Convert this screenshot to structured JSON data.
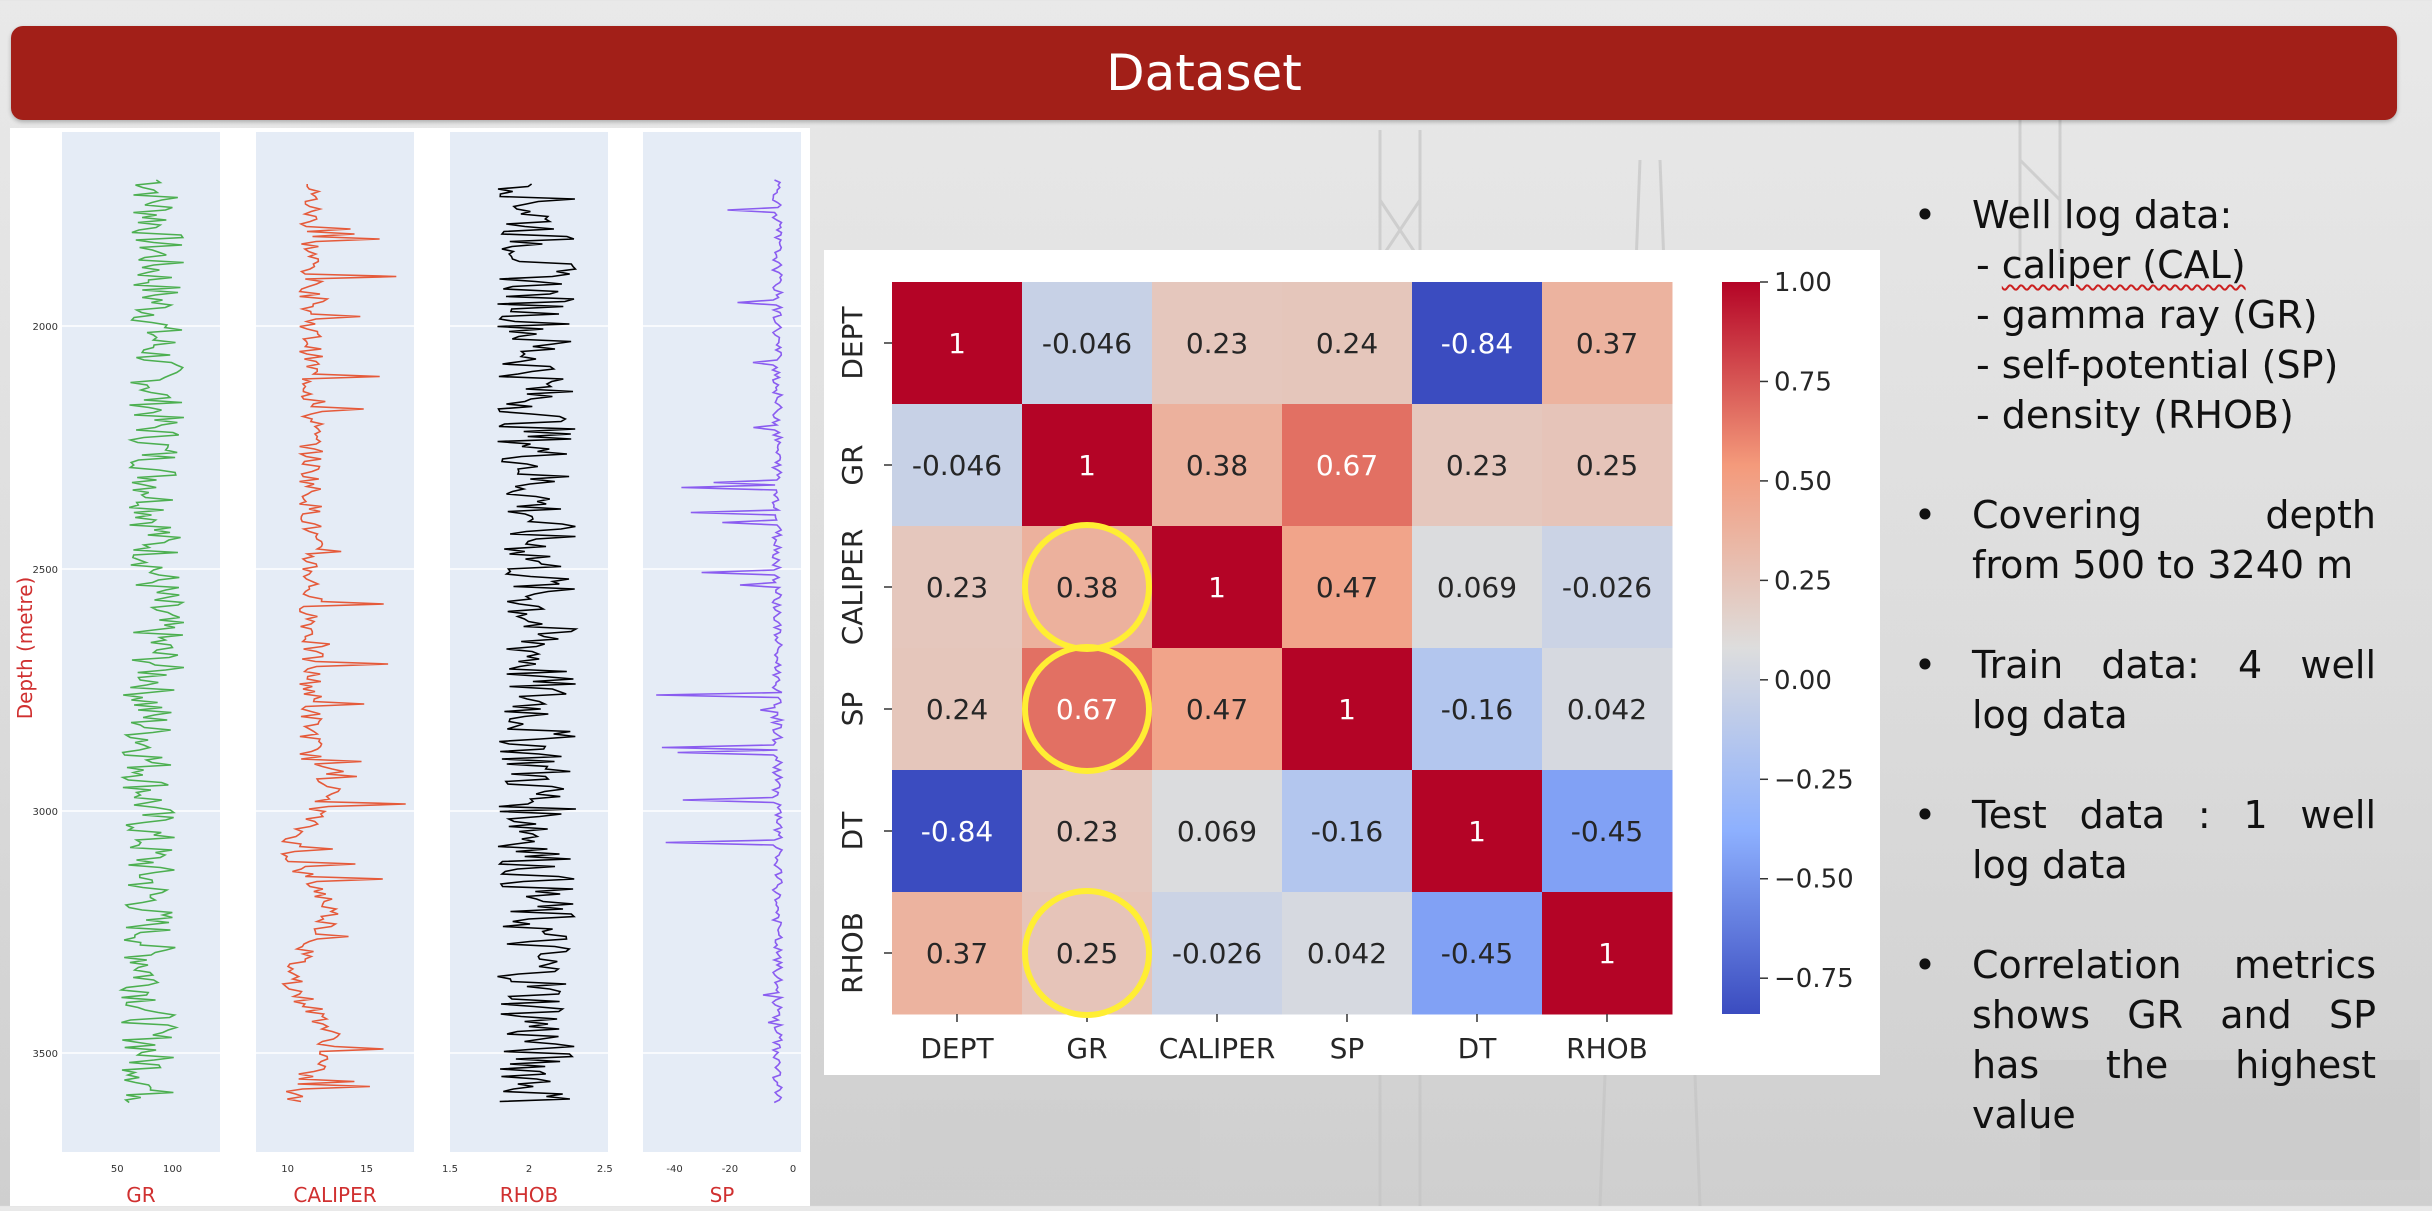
{
  "title": "Dataset",
  "colors": {
    "title_bar": "#a21f18",
    "gr": "#4caf50",
    "caliper": "#e55a3a",
    "rhob": "#000000",
    "sp": "#8a5cf0",
    "log_bg": "#e5ecf6",
    "depth_label": "#d03030",
    "highlight": "#ffee33"
  },
  "well_logs": {
    "depth_label": "Depth (metre)",
    "depth_ticks": [
      "2000",
      "2500",
      "3000",
      "3500"
    ],
    "tracks": [
      {
        "name": "GR",
        "ticks": [
          "50",
          "100"
        ]
      },
      {
        "name": "CALIPER",
        "ticks": [
          "10",
          "15"
        ]
      },
      {
        "name": "RHOB",
        "ticks": [
          "1.5",
          "2",
          "2.5"
        ]
      },
      {
        "name": "SP",
        "ticks": [
          "-40",
          "-20",
          "0"
        ]
      }
    ]
  },
  "chart_data": {
    "type": "heatmap",
    "rows": [
      "DEPT",
      "GR",
      "CALIPER",
      "SP",
      "DT",
      "RHOB"
    ],
    "columns": [
      "DEPT",
      "GR",
      "CALIPER",
      "SP",
      "DT",
      "RHOB"
    ],
    "values": [
      [
        1,
        -0.046,
        0.23,
        0.24,
        -0.84,
        0.37
      ],
      [
        -0.046,
        1,
        0.38,
        0.67,
        0.23,
        0.25
      ],
      [
        0.23,
        0.38,
        1,
        0.47,
        0.069,
        -0.026
      ],
      [
        0.24,
        0.67,
        0.47,
        1,
        -0.16,
        0.042
      ],
      [
        -0.84,
        0.23,
        0.069,
        -0.16,
        1,
        -0.45
      ],
      [
        0.37,
        0.25,
        -0.026,
        0.042,
        -0.45,
        1
      ]
    ],
    "colormap": "coolwarm",
    "colorbar_ticks": [
      "1.00",
      "0.75",
      "0.50",
      "0.25",
      "0.00",
      "−0.25",
      "−0.50",
      "−0.75"
    ],
    "colorbar_values": [
      1.0,
      0.75,
      0.5,
      0.25,
      0.0,
      -0.25,
      -0.5,
      -0.75
    ],
    "vmin": -0.84,
    "vmax": 1.0,
    "highlighted_cells": [
      [
        2,
        1
      ],
      [
        3,
        1
      ],
      [
        5,
        1
      ]
    ]
  },
  "bullets": {
    "well_log": {
      "label": "Well log data:",
      "items": [
        "caliper (CAL)",
        "gamma ray (GR)",
        "self-potential (SP)",
        "density (RHOB)"
      ]
    },
    "depth": {
      "line1": "Covering depth",
      "line2": "from 500 to 3240 m"
    },
    "train": {
      "line1": "Train data: 4 well",
      "line2": "log data"
    },
    "test": {
      "line1": "Test data : 1 well",
      "line2": "log data"
    },
    "corr": {
      "lines": [
        "Correlation metrics",
        "shows GR and SP",
        "has the highest"
      ],
      "last": "value"
    }
  }
}
